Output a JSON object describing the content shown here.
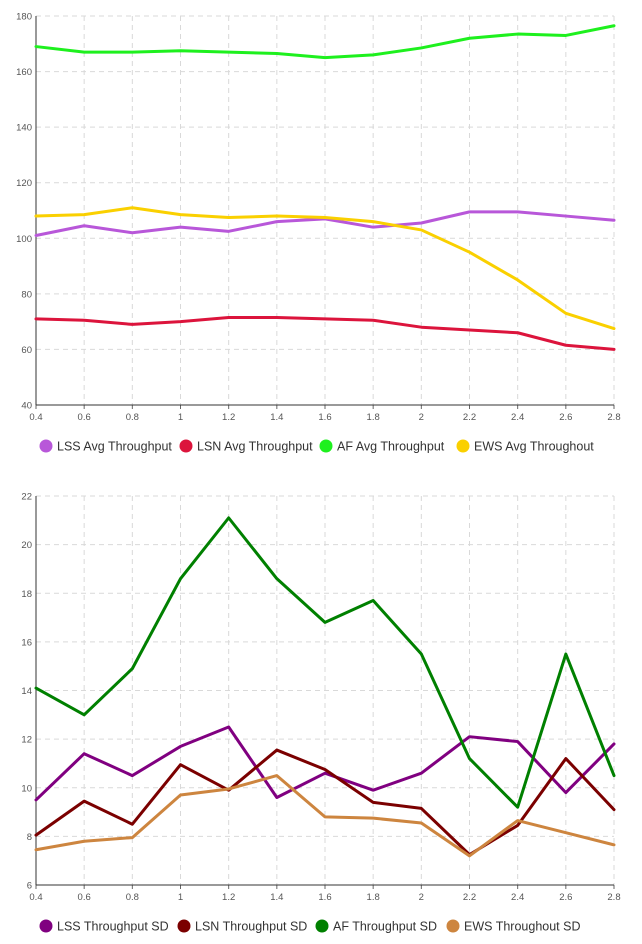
{
  "chart_data": [
    {
      "type": "line",
      "title": "",
      "xlabel": "",
      "ylabel": "",
      "x": [
        0.4,
        0.6,
        0.8,
        1,
        1.2,
        1.4,
        1.6,
        1.8,
        2,
        2.2,
        2.4,
        2.6,
        2.8
      ],
      "x_tick_labels": [
        "0.4",
        "0.6",
        "0.8",
        "1",
        "1.2",
        "1.4",
        "1.6",
        "1.8",
        "2",
        "2.2",
        "2.4",
        "2.6",
        "2.8"
      ],
      "ylim": [
        40,
        180
      ],
      "y_ticks": [
        40,
        60,
        80,
        100,
        120,
        140,
        160,
        180
      ],
      "grid": true,
      "legend_position": "bottom",
      "series": [
        {
          "name": "LSS Avg Throughput",
          "color": "#b857d9",
          "values": [
            101,
            104.5,
            102,
            104,
            102.5,
            106,
            107,
            104,
            105.5,
            109.5,
            109.5,
            108,
            106.5
          ]
        },
        {
          "name": "LSN Avg Throughput",
          "color": "#dc143c",
          "values": [
            71,
            70.5,
            69,
            70,
            71.5,
            71.5,
            71,
            70.5,
            68,
            67,
            66,
            61.5,
            60
          ]
        },
        {
          "name": "AF Avg Throughput",
          "color": "#1ef01e",
          "values": [
            169,
            167,
            167,
            167.5,
            167,
            166.5,
            165,
            166,
            168.5,
            172,
            173.5,
            173,
            176.5
          ]
        },
        {
          "name": "EWS Avg Throughout",
          "color": "#fad000",
          "values": [
            108,
            108.5,
            111,
            108.5,
            107.5,
            108,
            107.5,
            106,
            103,
            95,
            85,
            73,
            67.5
          ]
        }
      ]
    },
    {
      "type": "line",
      "title": "",
      "xlabel": "",
      "ylabel": "",
      "x": [
        0.4,
        0.6,
        0.8,
        1,
        1.2,
        1.4,
        1.6,
        1.8,
        2,
        2.2,
        2.4,
        2.6,
        2.8
      ],
      "x_tick_labels": [
        "0.4",
        "0.6",
        "0.8",
        "1",
        "1.2",
        "1.4",
        "1.6",
        "1.8",
        "2",
        "2.2",
        "2.4",
        "2.6",
        "2.8"
      ],
      "ylim": [
        6,
        22
      ],
      "y_ticks": [
        6,
        8,
        10,
        12,
        14,
        16,
        18,
        20,
        22
      ],
      "grid": true,
      "legend_position": "bottom",
      "series": [
        {
          "name": "LSS Throughput SD",
          "color": "#800080",
          "values": [
            9.5,
            11.4,
            10.5,
            11.7,
            12.5,
            9.6,
            10.6,
            9.9,
            10.6,
            12.1,
            11.9,
            9.8,
            11.8
          ]
        },
        {
          "name": "LSN Throughput SD",
          "color": "#7b0000",
          "values": [
            8.05,
            9.45,
            8.5,
            10.95,
            9.9,
            11.55,
            10.75,
            9.4,
            9.15,
            7.25,
            8.45,
            11.2,
            9.1
          ]
        },
        {
          "name": "AF Throughput SD",
          "color": "#008000",
          "values": [
            14.1,
            13,
            14.9,
            18.6,
            21.1,
            18.6,
            16.8,
            17.7,
            15.5,
            11.2,
            9.2,
            15.5,
            10.5
          ]
        },
        {
          "name": "EWS Throughout SD",
          "color": "#cd853f",
          "values": [
            7.45,
            7.8,
            7.95,
            9.7,
            9.95,
            10.5,
            8.8,
            8.75,
            8.55,
            7.2,
            8.65,
            8.15,
            7.65
          ]
        }
      ]
    }
  ]
}
